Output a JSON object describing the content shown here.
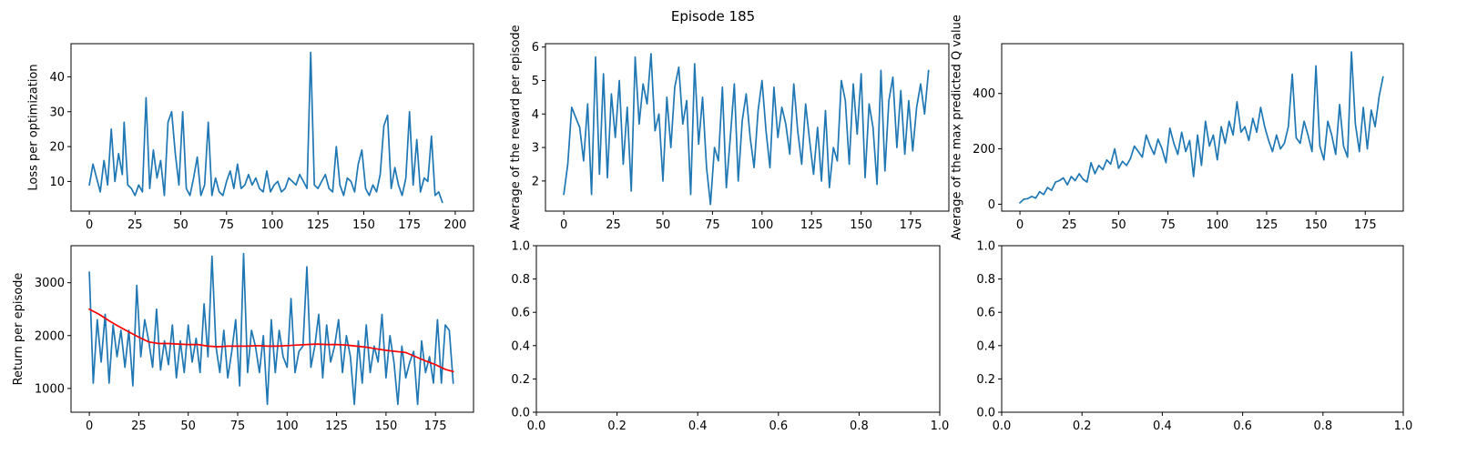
{
  "figure": {
    "suptitle": "Episode 185"
  },
  "colors": {
    "series": "#1f77b4",
    "moving_average": "#ff0000"
  },
  "chart_data": [
    {
      "id": "loss",
      "type": "line",
      "title": "",
      "xlabel": "",
      "ylabel": "Loss per optimization",
      "xlim": [
        -10,
        210
      ],
      "ylim": [
        1.5,
        49.5
      ],
      "xticks": [
        0,
        25,
        50,
        75,
        100,
        125,
        150,
        175,
        200
      ],
      "yticks": [
        10,
        20,
        30,
        40
      ],
      "grid": false,
      "series": [
        {
          "color": "#1f77b4",
          "x": [
            0,
            2,
            4,
            6,
            8,
            10,
            12,
            14,
            16,
            18,
            19,
            21,
            23,
            25,
            27,
            29,
            31,
            33,
            35,
            37,
            39,
            41,
            43,
            45,
            47,
            49,
            51,
            53,
            55,
            57,
            59,
            61,
            63,
            65,
            67,
            69,
            71,
            73,
            75,
            77,
            79,
            81,
            83,
            85,
            87,
            89,
            91,
            93,
            95,
            97,
            99,
            101,
            103,
            105,
            107,
            109,
            111,
            113,
            115,
            117,
            119,
            121,
            123,
            125,
            127,
            129,
            131,
            133,
            135,
            137,
            139,
            141,
            143,
            145,
            147,
            149,
            151,
            153,
            155,
            157,
            159,
            161,
            163,
            165,
            167,
            169,
            171,
            173,
            175,
            177,
            179,
            181,
            183,
            185,
            187,
            189,
            191,
            193
          ],
          "y": [
            9,
            15,
            11,
            7,
            16,
            9,
            25,
            10,
            18,
            12,
            27,
            9,
            8,
            6,
            9,
            7,
            34,
            8,
            19,
            11,
            16,
            6,
            27,
            30,
            18,
            9,
            30,
            8,
            6,
            11,
            17,
            6,
            9,
            27,
            6,
            11,
            7,
            6,
            10,
            13,
            8,
            15,
            8,
            9,
            12,
            9,
            11,
            8,
            7,
            13,
            7,
            9,
            10,
            7,
            8,
            11,
            10,
            9,
            12,
            10,
            8,
            47,
            9,
            8,
            10,
            12,
            8,
            7,
            20,
            9,
            6,
            11,
            10,
            7,
            15,
            19,
            8,
            6,
            9,
            7,
            12,
            26,
            29,
            8,
            14,
            9,
            6,
            11,
            30,
            9,
            22,
            7,
            11,
            10,
            23,
            6,
            7,
            4
          ]
        }
      ]
    },
    {
      "id": "avg-reward",
      "type": "line",
      "title": "",
      "xlabel": "",
      "ylabel": "Average of the reward per episode",
      "xlim": [
        -9.25,
        194.25
      ],
      "ylim": [
        1.1,
        6.1
      ],
      "xticks": [
        0,
        25,
        50,
        75,
        100,
        125,
        150,
        175
      ],
      "yticks": [
        2,
        3,
        4,
        5,
        6
      ],
      "grid": false,
      "series": [
        {
          "color": "#1f77b4",
          "x": [
            0,
            2,
            4,
            6,
            8,
            10,
            12,
            14,
            16,
            18,
            20,
            22,
            24,
            26,
            28,
            30,
            32,
            34,
            36,
            38,
            40,
            42,
            44,
            46,
            48,
            50,
            52,
            54,
            56,
            58,
            60,
            62,
            64,
            66,
            68,
            70,
            72,
            74,
            76,
            78,
            80,
            82,
            84,
            86,
            88,
            90,
            92,
            94,
            96,
            98,
            100,
            102,
            104,
            106,
            108,
            110,
            112,
            114,
            116,
            118,
            120,
            122,
            124,
            126,
            128,
            130,
            132,
            134,
            136,
            138,
            140,
            142,
            144,
            146,
            148,
            150,
            152,
            154,
            156,
            158,
            160,
            162,
            164,
            166,
            168,
            170,
            172,
            174,
            176,
            178,
            180,
            182,
            184
          ],
          "y": [
            1.6,
            2.5,
            4.2,
            3.9,
            3.6,
            2.6,
            4.3,
            1.6,
            5.7,
            2.2,
            5.2,
            2.1,
            4.6,
            3.3,
            5.0,
            2.5,
            4.2,
            1.7,
            5.7,
            3.7,
            4.9,
            4.3,
            5.8,
            3.5,
            4.0,
            2.0,
            4.5,
            3.0,
            4.8,
            5.4,
            3.7,
            4.4,
            1.6,
            5.5,
            3.1,
            4.5,
            2.4,
            1.3,
            3.0,
            2.6,
            4.8,
            1.8,
            3.3,
            4.9,
            2.0,
            3.8,
            4.6,
            3.3,
            2.4,
            4.1,
            5.0,
            3.5,
            2.4,
            4.8,
            3.3,
            4.2,
            3.7,
            2.8,
            4.9,
            3.5,
            2.5,
            4.3,
            3.2,
            2.2,
            3.6,
            2.0,
            4.1,
            1.8,
            3.0,
            2.6,
            5.0,
            4.4,
            2.5,
            4.9,
            3.4,
            5.2,
            2.1,
            4.3,
            3.6,
            1.9,
            5.3,
            2.3,
            4.4,
            5.1,
            3.0,
            4.7,
            2.8,
            4.4,
            2.9,
            4.2,
            4.9,
            4.0,
            5.3
          ]
        }
      ]
    },
    {
      "id": "max-q",
      "type": "line",
      "title": "",
      "xlabel": "",
      "ylabel": "Average of the max predicted Q value",
      "xlim": [
        -9.25,
        194.25
      ],
      "ylim": [
        -25,
        580
      ],
      "xticks": [
        0,
        25,
        50,
        75,
        100,
        125,
        150,
        175
      ],
      "yticks": [
        0,
        200,
        400
      ],
      "grid": false,
      "series": [
        {
          "color": "#1f77b4",
          "x": [
            0,
            2,
            4,
            6,
            8,
            10,
            12,
            14,
            16,
            18,
            20,
            22,
            24,
            26,
            28,
            30,
            32,
            34,
            36,
            38,
            40,
            42,
            44,
            46,
            48,
            50,
            52,
            54,
            56,
            58,
            60,
            62,
            64,
            66,
            68,
            70,
            72,
            74,
            76,
            78,
            80,
            82,
            84,
            86,
            88,
            90,
            92,
            94,
            96,
            98,
            100,
            102,
            104,
            106,
            108,
            110,
            112,
            114,
            116,
            118,
            120,
            122,
            124,
            126,
            128,
            130,
            132,
            134,
            136,
            138,
            140,
            142,
            144,
            146,
            148,
            150,
            152,
            154,
            156,
            158,
            160,
            162,
            164,
            166,
            168,
            170,
            172,
            174,
            176,
            178,
            180,
            182,
            184
          ],
          "y": [
            5,
            18,
            20,
            28,
            22,
            45,
            35,
            60,
            50,
            80,
            85,
            95,
            70,
            100,
            85,
            110,
            90,
            80,
            150,
            110,
            140,
            125,
            160,
            145,
            200,
            130,
            155,
            140,
            165,
            210,
            190,
            170,
            250,
            210,
            180,
            235,
            200,
            150,
            275,
            220,
            180,
            260,
            190,
            230,
            100,
            250,
            140,
            300,
            210,
            250,
            160,
            280,
            220,
            300,
            250,
            370,
            260,
            280,
            230,
            310,
            260,
            350,
            280,
            230,
            190,
            250,
            200,
            220,
            280,
            470,
            240,
            220,
            300,
            250,
            190,
            500,
            210,
            160,
            300,
            250,
            180,
            360,
            210,
            170,
            550,
            290,
            190,
            350,
            200,
            340,
            280,
            390,
            460
          ]
        }
      ]
    },
    {
      "id": "return",
      "type": "line",
      "title": "",
      "xlabel": "",
      "ylabel": "Return per episode",
      "xlim": [
        -9.25,
        194.25
      ],
      "ylim": [
        550,
        3700
      ],
      "xticks": [
        0,
        25,
        50,
        75,
        100,
        125,
        150,
        175
      ],
      "yticks": [
        1000,
        2000,
        3000
      ],
      "grid": false,
      "series": [
        {
          "color": "#1f77b4",
          "x": [
            0,
            2,
            4,
            6,
            8,
            10,
            12,
            14,
            16,
            18,
            20,
            22,
            24,
            26,
            28,
            30,
            32,
            34,
            36,
            38,
            40,
            42,
            44,
            46,
            48,
            50,
            52,
            54,
            56,
            58,
            60,
            62,
            64,
            66,
            68,
            70,
            72,
            74,
            76,
            78,
            80,
            82,
            84,
            86,
            88,
            90,
            92,
            94,
            96,
            98,
            100,
            102,
            104,
            106,
            108,
            110,
            112,
            114,
            116,
            118,
            120,
            122,
            124,
            126,
            128,
            130,
            132,
            134,
            136,
            138,
            140,
            142,
            144,
            146,
            148,
            150,
            152,
            154,
            156,
            158,
            160,
            162,
            164,
            166,
            168,
            170,
            172,
            174,
            176,
            178,
            180,
            182,
            184
          ],
          "y": [
            3200,
            1100,
            2300,
            1500,
            2400,
            1100,
            2200,
            1600,
            2100,
            1400,
            2100,
            1050,
            2950,
            1600,
            2300,
            1900,
            1400,
            2500,
            1350,
            1900,
            1450,
            2200,
            1200,
            1900,
            1300,
            2200,
            1500,
            1950,
            1300,
            2600,
            1600,
            3500,
            1800,
            1300,
            2100,
            1200,
            1700,
            2300,
            1050,
            3550,
            1300,
            2100,
            1800,
            1300,
            2000,
            700,
            2300,
            1300,
            2100,
            1600,
            1400,
            2700,
            1300,
            1700,
            1800,
            3300,
            1400,
            1800,
            2400,
            1200,
            2200,
            1500,
            1800,
            2300,
            1300,
            2000,
            1600,
            700,
            1900,
            1100,
            2200,
            1300,
            1800,
            1500,
            2400,
            1200,
            2000,
            1500,
            700,
            1800,
            1200,
            1500,
            1700,
            700,
            1900,
            1300,
            1600,
            1100,
            2300,
            1100,
            2200,
            2100,
            1100
          ]
        },
        {
          "color": "#ff0000",
          "x": [
            0,
            5,
            10,
            15,
            20,
            25,
            30,
            35,
            40,
            45,
            50,
            55,
            60,
            65,
            70,
            75,
            80,
            85,
            90,
            95,
            100,
            105,
            110,
            115,
            120,
            125,
            130,
            135,
            140,
            145,
            150,
            155,
            160,
            165,
            170,
            175,
            180,
            184
          ],
          "y": [
            2500,
            2400,
            2280,
            2170,
            2070,
            1970,
            1880,
            1850,
            1850,
            1840,
            1830,
            1830,
            1800,
            1790,
            1800,
            1800,
            1800,
            1810,
            1800,
            1800,
            1810,
            1820,
            1830,
            1840,
            1830,
            1830,
            1820,
            1800,
            1780,
            1750,
            1720,
            1700,
            1680,
            1600,
            1520,
            1450,
            1360,
            1320
          ]
        }
      ]
    },
    {
      "id": "empty-1",
      "type": "line",
      "title": "",
      "xlabel": "",
      "ylabel": "",
      "xlim": [
        0,
        1
      ],
      "ylim": [
        0,
        1
      ],
      "xticks": [
        0.0,
        0.2,
        0.4,
        0.6,
        0.8,
        1.0
      ],
      "yticks": [
        0.0,
        0.2,
        0.4,
        0.6,
        0.8,
        1.0
      ],
      "grid": false,
      "series": []
    },
    {
      "id": "empty-2",
      "type": "line",
      "title": "",
      "xlabel": "",
      "ylabel": "",
      "xlim": [
        0,
        1
      ],
      "ylim": [
        0,
        1
      ],
      "xticks": [
        0.0,
        0.2,
        0.4,
        0.6,
        0.8,
        1.0
      ],
      "yticks": [
        0.0,
        0.2,
        0.4,
        0.6,
        0.8,
        1.0
      ],
      "grid": false,
      "series": []
    }
  ]
}
